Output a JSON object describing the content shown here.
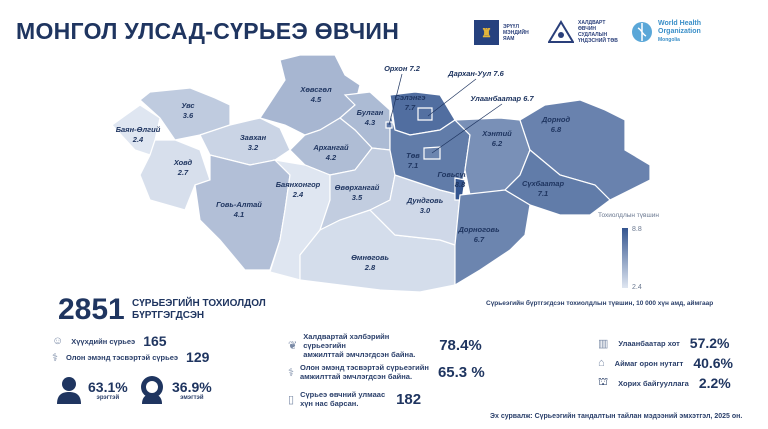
{
  "title": "МОНГОЛ УЛСАД-СҮРЬЕЭ ӨВЧИН",
  "logos": [
    {
      "name": "ЭРҮҮЛ МЭНДИЙН ЯАМ"
    },
    {
      "name": "ХАЛДВАРТ ӨВЧИН СУДЛАЛЫН ҮНДЭСНИЙ ТӨВ"
    },
    {
      "name": "World Health Organization",
      "sub": "Mongolia"
    }
  ],
  "map": {
    "scale_colors": {
      "low": "#dfe6f1",
      "high": "#34558f"
    },
    "legend": {
      "title": "Тохиолдлын түвшин",
      "max": "8.8",
      "min": "2.4"
    },
    "caption": "Сүрьеэгийн бүртгэгдсэн тохиолдлын түвшин, 10 000 хүн амд, аймгаар",
    "regions": [
      {
        "name": "Баян-Өлгий",
        "value": "2.4"
      },
      {
        "name": "Увс",
        "value": "3.6"
      },
      {
        "name": "Ховд",
        "value": "2.7"
      },
      {
        "name": "Завхан",
        "value": "3.2"
      },
      {
        "name": "Хөвсгөл",
        "value": "4.5"
      },
      {
        "name": "Булган",
        "value": "4.3"
      },
      {
        "name": "Архангай",
        "value": "4.2"
      },
      {
        "name": "Говь-Алтай",
        "value": "4.1"
      },
      {
        "name": "Баянхонгор",
        "value": "2.4"
      },
      {
        "name": "Өвөрхангай",
        "value": "3.5"
      },
      {
        "name": "Өмнөговь",
        "value": "2.8"
      },
      {
        "name": "Дундговь",
        "value": "3.0"
      },
      {
        "name": "Сэлэнгэ",
        "value": "7.7"
      },
      {
        "name": "Төв",
        "value": "7.1"
      },
      {
        "name": "Говьсүмбэр",
        "value": "8.8"
      },
      {
        "name": "Хэнтий",
        "value": "6.2"
      },
      {
        "name": "Дорнод",
        "value": "6.8"
      },
      {
        "name": "Сүхбаатар",
        "value": "7.1"
      },
      {
        "name": "Дорноговь",
        "value": "6.7"
      },
      {
        "name": "Дархан-Уул",
        "value": "7.6"
      },
      {
        "name": "Улаанбаатар",
        "value": "6.7"
      },
      {
        "name": "Орхон",
        "value": "7.2"
      }
    ]
  },
  "summary": {
    "total": "2851",
    "total_label_1": "СҮРЬЕЭГИЙН ТОХИОЛДОЛ",
    "total_label_2": "БҮРТГЭГДСЭН",
    "children_label": "Хүүхдийн сүрьеэ",
    "children": "165",
    "mdr_label": "Олон эмэнд тэсвэртэй сүрьеэ",
    "mdr": "129",
    "male": "63.1%",
    "male_label": "эрэгтэй",
    "female": "36.9%",
    "female_label": "эмэгтэй"
  },
  "treatment": [
    {
      "label1": "Халдвартай хэлбэрийн сүрьеэгийн",
      "label2": "амжилттай эмчлэгдсэн байна.",
      "value": "78.4%"
    },
    {
      "label1": "Олон эмэнд тэсвэртэй сүрьеэгийн",
      "label2": "амжилттай эмчлэгдсэн байна.",
      "value": "65.3 %"
    },
    {
      "label1": "Сүрьеэ өвчний улмаас",
      "label2": "хүн нас барсан.",
      "value": "182"
    }
  ],
  "location": [
    {
      "label": "Улаанбаатар хот",
      "value": "57.2%"
    },
    {
      "label": "Аймаг орон нутагт",
      "value": "40.6%"
    },
    {
      "label": "Хорих байгууллага",
      "value": "2.2%"
    }
  ],
  "source": "Эх сурвалж:  Сүрьеэгийн тандалтын тайлан мэдээний эмхэтгэл, 2025 он."
}
